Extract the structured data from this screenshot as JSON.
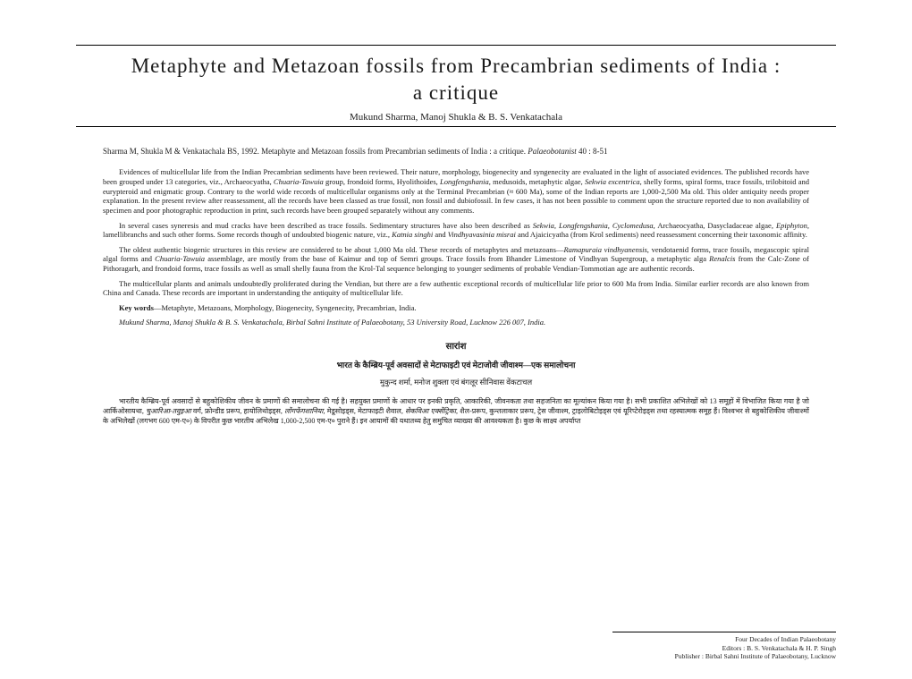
{
  "title": "Metaphyte and Metazoan fossils from Precambrian sediments of India :<br>a critique",
  "authors": "Mukund Sharma, Manoj Shukla & B. S. Venkatachala",
  "citation": {
    "text": "Sharma M, Shukla M & Venkatachala BS, 1992. Metaphyte and Metazoan fossils from Precambrian sediments of India : a critique. ",
    "journal": "Palaeobotanist",
    "vol": " 40 : 8-51"
  },
  "abstract": [
    "Evidences of multicellular life from the Indian Precambrian sediments have been reviewed. Their nature, morphology, biogenecity and syngenecity are evaluated in the light of associated evidences. The published records have been grouped under 13 categories, viz., Archaeocyatha, <i>Chuaria-Tawuia</i> group, frondoid forms, Hyolithoides, <i>Longfengshania</i>, medusoids, metaphytic algae, <i>Sekwia excentrica</i>, shelly forms, spiral forms, trace fossils, trilobitoid and eurypteroid and enigmatic group. Contrary to the world wide records of multicellular organisms only at the Terminal Precambrian (≈ 600 Ma), some of the Indian reports are 1,000-2,500 Ma old. This older antiquity needs proper explanation. In the present review after reassessment, all the records have been classed as true fossil, non fossil and dubiofossil. In few cases, it has not been possible to comment upon the structure reported due to non availability of specimen and poor photographic reproduction in print, such records have been grouped separately without any comments.",
    "In several cases syneresis and mud cracks have been described as trace fossils. Sedimentary structures have also been described as <i>Sekwia, Longfengshania, Cyclomedusa</i>, Archaeocyatha, Dasycladaceae algae, <i>Epiphyton</i>, lamellibranchs and such other forms. Some records though of undoubted biogenic nature, viz., <i>Katnia singhi</i> and <i>Vindhyavasinia misrai</i> and Ajaicicyatha (from Krol sediments) need reassessment concerning their taxonomic affinity.",
    "The oldest authentic biogenic structures in this review are considered to be about 1,000 Ma old. These records of metaphytes and metazoans—<i>Ramapuraia vindhyanensis</i>, vendotaenid forms, trace fossils, megascopic spiral algal forms and <i>Chuaria-Tawuia</i> assemblage, are mostly from the base of Kaimur and top of Semri groups. Trace fossils from Bhander Limestone of Vindhyan Supergroup, a metaphytic alga <i>Renalcis</i> from the Calc-Zone of Pithoragarh, and frondoid forms, trace fossils as well as small shelly fauna from the Krol-Tal sequence belonging to younger sediments of probable Vendian-Tommotian age are authentic records.",
    "The multicellular plants and animals undoubtedly proliferated during the Vendian, but there are a few authentic exceptional records of multicellular life prior to 600 Ma from India. Similar earlier records are also known from China and Canada. These records are important in understanding the antiquity of multicellular life."
  ],
  "keywords": {
    "label": "Key words",
    "text": "—Metaphyte, Metazoans, Morphology, Biogenecity, Syngenecity, Precambrian, India."
  },
  "affiliation": "Mukund Sharma, Manoj Shukla & B. S. Venkatachala, Birbal Sahni Institute of Palaeobotany, 53 University Road, Lucknow 226 007, India.",
  "hindi": {
    "heading": "सारांश",
    "title": "भारत के कैम्ब्रिय-पूर्व अवसादों से मेटाफाइटी एवं मेटाजोवी जीवाश्म—एक समालोचना",
    "authors": "मुकुन्द शर्मा, मनोज शुक्ला एवं बंगलूर सीनिवास वेंकटाचल",
    "para": "भारतीय कैम्ब्रिय-पूर्व अवसादों से बहुकोशिकीय जीवन के प्रमाणों की समालोचना की गई है। सहयुक्त प्रमाणों के आधार पर इनकी प्रकृति, आकारिकी, जीवनकता तथा सहजनिता का मूल्यांकन किया गया है। सभी प्रकाशित अभिलेखों को 13 समूहों में विभाजित किया गया है जो आर्किओसायथा, <i>चुआरिआ-तवुइआ</i> वर्ग, फ्रोन्डीड प्ररूप, हायोलिथोइड्स, <i>लोंगफेंगशानिया</i>, मेडूसोइड्स, मेटाफाइटी शैवाल, <i>सेकविआ एक्सेंट्रिका</i>, शैल-प्ररूप, कुन्तलाकार प्ररूप, ट्रेस जीवाश्म, ट्राइलोबिटोइड्स एवं यूरिप्टेरोइड्स तथा रहस्यात्मक समूह हैं। विश्वभर से बहुकोशिकीय जीवाश्मों के अभिलेखों (लगभग 600 एम-ए०) के विपरीत कुछ भारतीय अभिलेख 1,000-2,500 एम-ए० पुराने हैं। इन आयामों की यथातथ्य हेतु समुचित व्याख्या की आवश्यकता है। कुछ के साक्ष्य अपर्याप्त"
  },
  "footer": {
    "line1": "Four Decades of Indian Palaeobotany",
    "line2": "Editors : B. S. Venkatachala & H. P. Singh",
    "line3": "Publisher : Birbal Sahni Institute of Palaeobotany, Lucknow"
  }
}
